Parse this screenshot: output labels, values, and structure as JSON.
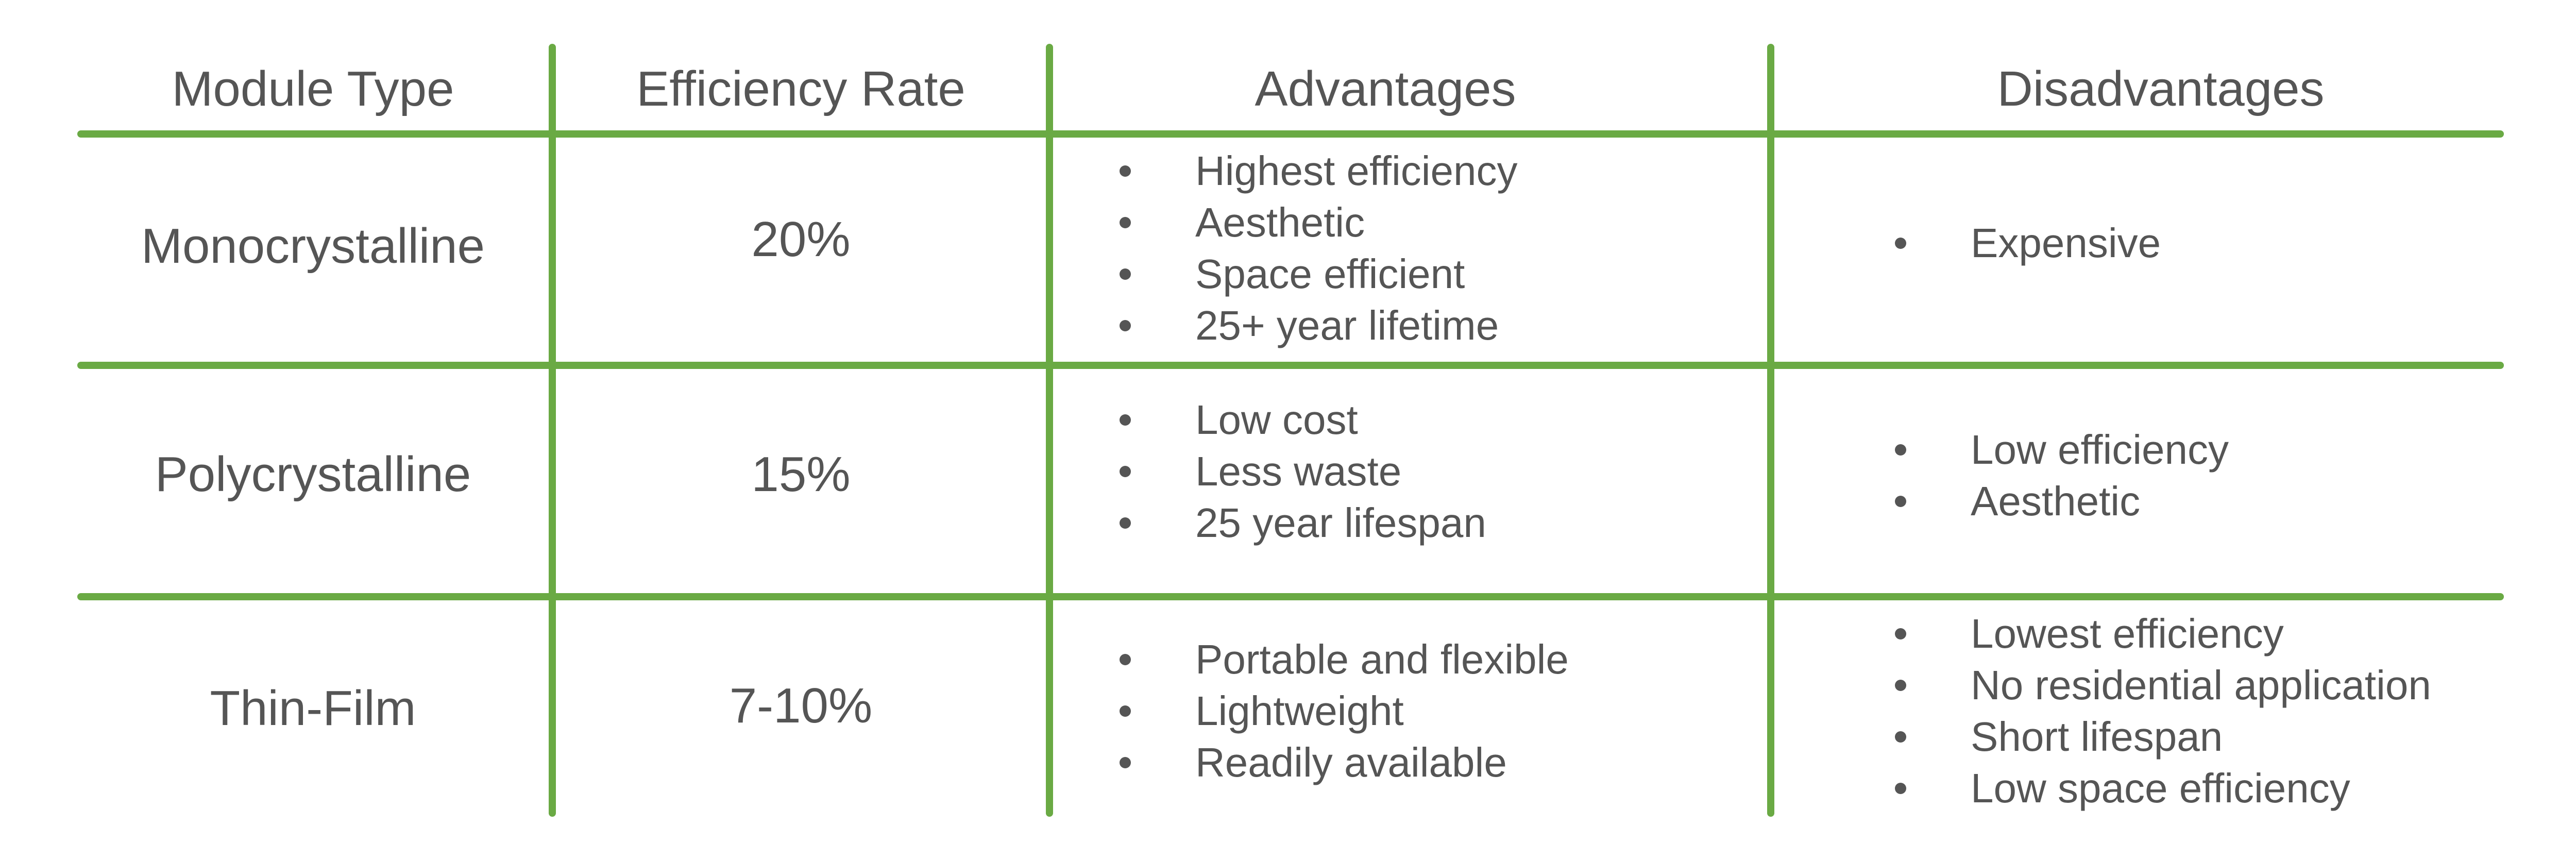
{
  "table": {
    "headers": {
      "module_type": "Module Type",
      "efficiency_rate": "Efficiency Rate",
      "advantages": "Advantages",
      "disadvantages": "Disadvantages"
    },
    "rows": [
      {
        "module": "Monocrystalline",
        "efficiency": "20%",
        "advantages": [
          "Highest efficiency",
          "Aesthetic",
          "Space efficient",
          "25+ year lifetime"
        ],
        "disadvantages": [
          "Expensive"
        ]
      },
      {
        "module": "Polycrystalline",
        "efficiency": "15%",
        "advantages": [
          "Low cost",
          "Less waste",
          "25 year lifespan"
        ],
        "disadvantages": [
          "Low efficiency",
          "Aesthetic"
        ]
      },
      {
        "module": "Thin-Film",
        "efficiency": "7-10%",
        "advantages": [
          "Portable and flexible",
          "Lightweight",
          "Readily available"
        ],
        "disadvantages": [
          "Lowest efficiency",
          "No residential application",
          "Short lifespan",
          "Low space efficiency"
        ]
      }
    ]
  },
  "colors": {
    "grid_line": "#6aaa44",
    "text": "#555555",
    "background": "#ffffff"
  }
}
